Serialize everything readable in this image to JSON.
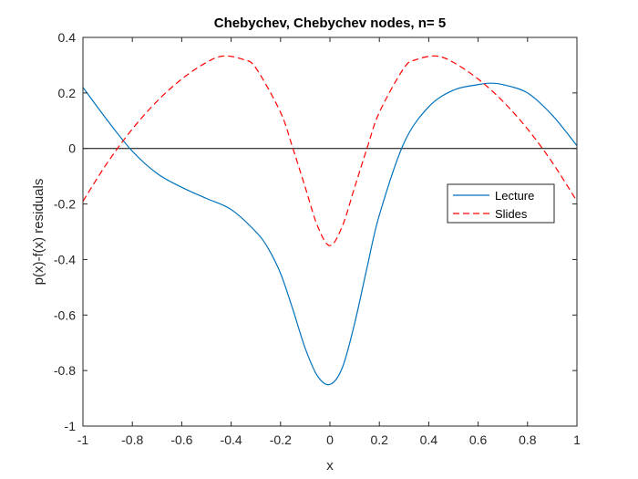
{
  "chart_data": {
    "type": "line",
    "title": "Chebychev, Chebychev nodes, n= 5",
    "xlabel": "x",
    "ylabel": "p(x)-f(x) residuals",
    "xlim": [
      -1,
      1
    ],
    "ylim": [
      -1,
      0.4
    ],
    "xticks": [
      -1,
      -0.8,
      -0.6,
      -0.4,
      -0.2,
      0,
      0.2,
      0.4,
      0.6,
      0.8,
      1
    ],
    "xtick_labels": [
      "-1",
      "-0.8",
      "-0.6",
      "-0.4",
      "-0.2",
      "0",
      "0.2",
      "0.4",
      "0.6",
      "0.8",
      "1"
    ],
    "yticks": [
      -1,
      -0.8,
      -0.6,
      -0.4,
      -0.2,
      0,
      0.2,
      0.4
    ],
    "ytick_labels": [
      "-1",
      "-0.8",
      "-0.6",
      "-0.4",
      "-0.2",
      "0",
      "0.2",
      "0.4"
    ],
    "grid": false,
    "legend_position": "right",
    "zero_line": {
      "y": 0,
      "color": "#000000"
    },
    "series": [
      {
        "name": "Lecture",
        "color": "#0072BD",
        "style": "solid",
        "x": [
          -1,
          -0.9,
          -0.8,
          -0.7,
          -0.6,
          -0.5,
          -0.4,
          -0.3,
          -0.25,
          -0.2,
          -0.15,
          -0.1,
          -0.05,
          0,
          0.05,
          0.1,
          0.15,
          0.2,
          0.3,
          0.4,
          0.5,
          0.6,
          0.65,
          0.7,
          0.8,
          0.9,
          1
        ],
        "y": [
          0.22,
          0.1,
          -0.01,
          -0.09,
          -0.14,
          -0.18,
          -0.22,
          -0.3,
          -0.36,
          -0.45,
          -0.58,
          -0.72,
          -0.82,
          -0.85,
          -0.79,
          -0.63,
          -0.43,
          -0.24,
          0.02,
          0.15,
          0.21,
          0.23,
          0.235,
          0.23,
          0.2,
          0.12,
          0.01
        ]
      },
      {
        "name": "Slides",
        "color": "#FF0000",
        "style": "dashed",
        "x": [
          -1,
          -0.9,
          -0.8,
          -0.7,
          -0.6,
          -0.5,
          -0.43,
          -0.35,
          -0.3,
          -0.2,
          -0.15,
          -0.1,
          -0.05,
          0,
          0.05,
          0.1,
          0.15,
          0.2,
          0.3,
          0.35,
          0.43,
          0.5,
          0.6,
          0.7,
          0.8,
          0.9,
          1
        ],
        "y": [
          -0.19,
          -0.05,
          0.07,
          0.17,
          0.25,
          0.31,
          0.333,
          0.32,
          0.29,
          0.13,
          0.0,
          -0.14,
          -0.28,
          -0.35,
          -0.28,
          -0.14,
          0.0,
          0.13,
          0.29,
          0.32,
          0.333,
          0.31,
          0.25,
          0.17,
          0.07,
          -0.05,
          -0.19
        ]
      }
    ]
  }
}
